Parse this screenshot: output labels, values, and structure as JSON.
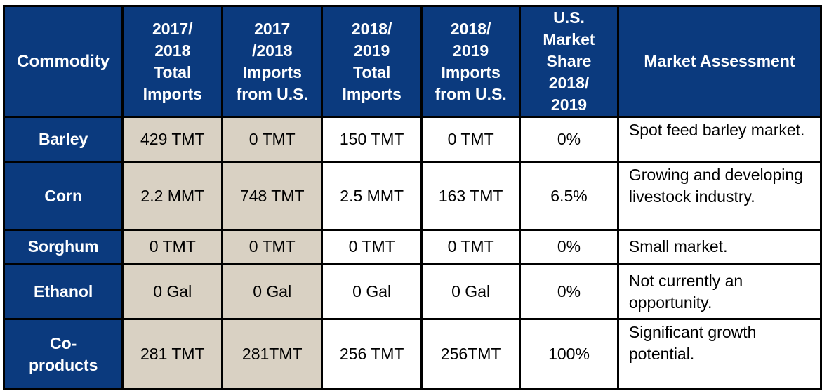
{
  "headers": [
    "Commodity",
    "2017/\n2018\nTotal\nImports",
    "2017\n/2018\nImports\nfrom U.S.",
    "2018/\n2019\nTotal\nImports",
    "2018/\n2019\nImports\nfrom U.S.",
    "U.S.\nMarket\nShare\n2018/\n2019",
    "Market Assessment"
  ],
  "rows": [
    {
      "commodity": "Barley",
      "total_2017": "429 TMT",
      "us_2017": "0 TMT",
      "total_2018": "150 TMT",
      "us_2018": "0 TMT",
      "share": "0%",
      "assessment": "Spot feed barley market."
    },
    {
      "commodity": "Corn",
      "total_2017": "2.2 MMT",
      "us_2017": "748 TMT",
      "total_2018": "2.5 MMT",
      "us_2018": "163 TMT",
      "share": "6.5%",
      "assessment": "Growing and developing livestock industry."
    },
    {
      "commodity": "Sorghum",
      "total_2017": "0 TMT",
      "us_2017": "0 TMT",
      "total_2018": "0 TMT",
      "us_2018": "0 TMT",
      "share": "0%",
      "assessment": "Small market."
    },
    {
      "commodity": "Ethanol",
      "total_2017": "0 Gal",
      "us_2017": "0 Gal",
      "total_2018": "0 Gal",
      "us_2018": "0 Gal",
      "share": "0%",
      "assessment": "Not currently an opportunity."
    },
    {
      "commodity": "Co-\nproducts",
      "total_2017": "281 TMT",
      "us_2017": "281TMT",
      "total_2018": "256 TMT",
      "us_2018": "256TMT",
      "share": "100%",
      "assessment": "Significant growth potential."
    }
  ],
  "colors": {
    "header_bg": "#0b3a7e",
    "header_text": "#ffffff",
    "tan_cell": "#d9d1c3",
    "border": "#000000"
  }
}
